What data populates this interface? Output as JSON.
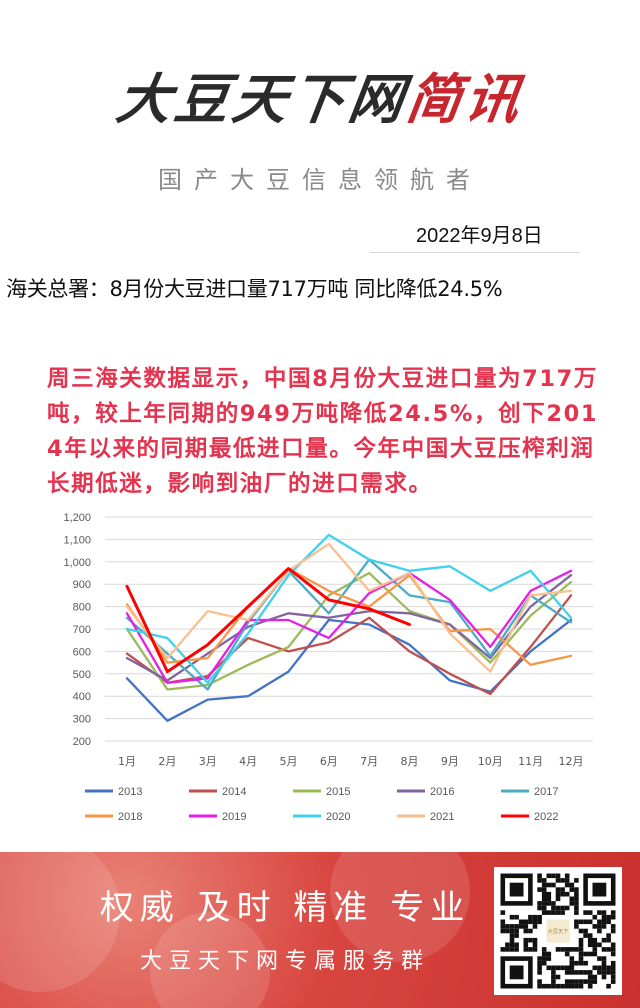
{
  "header": {
    "brand_main": "大豆天下网",
    "brand_sub": "简讯",
    "slogan": "国产大豆信息领航者",
    "date": "2022年9月8日"
  },
  "headline": "海关总署：8月份大豆进口量717万吨 同比降低24.5%",
  "body_text": "周三海关数据显示，中国8月份大豆进口量为717万吨，较上年同期的949万吨降低24.5%，创下2014年以来的同期最低进口量。今年中国大豆压榨利润长期低迷，影响到油厂的进口需求。",
  "footer": {
    "line1": "权威 及时 精准 专业",
    "line2": "大豆天下网专属服务群",
    "qr_logo_text": "大豆天下"
  },
  "chart_data": {
    "type": "line",
    "categories": [
      "1月",
      "2月",
      "3月",
      "4月",
      "5月",
      "6月",
      "7月",
      "8月",
      "9月",
      "10月",
      "11月",
      "12月"
    ],
    "y_ticks": [
      "1,200",
      "1,100",
      "1,000",
      "900",
      "800",
      "700",
      "600",
      "500",
      "400",
      "300",
      "200"
    ],
    "ylim": [
      200,
      1200
    ],
    "grid": true,
    "legend_position": "bottom",
    "series": [
      {
        "name": "2013",
        "color": "#4472c4",
        "values": [
          480,
          290,
          385,
          400,
          510,
          740,
          720,
          630,
          470,
          420,
          600,
          740
        ]
      },
      {
        "name": "2014",
        "color": "#c0504d",
        "values": [
          590,
          460,
          490,
          660,
          600,
          640,
          750,
          600,
          500,
          410,
          620,
          850
        ]
      },
      {
        "name": "2015",
        "color": "#9bbb59",
        "values": [
          700,
          430,
          450,
          540,
          620,
          850,
          950,
          780,
          720,
          550,
          760,
          910
        ]
      },
      {
        "name": "2016",
        "color": "#8064a2",
        "values": [
          570,
          470,
          590,
          710,
          770,
          750,
          780,
          770,
          720,
          570,
          800,
          940
        ]
      },
      {
        "name": "2017",
        "color": "#4bacc6",
        "values": [
          750,
          590,
          430,
          730,
          960,
          770,
          1010,
          850,
          820,
          580,
          850,
          730
        ]
      },
      {
        "name": "2018",
        "color": "#f79646",
        "values": [
          810,
          550,
          570,
          800,
          970,
          870,
          800,
          940,
          690,
          700,
          540,
          580
        ]
      },
      {
        "name": "2019",
        "color": "#e61ee6",
        "values": [
          770,
          460,
          480,
          740,
          740,
          660,
          860,
          950,
          830,
          620,
          870,
          960
        ]
      },
      {
        "name": "2020",
        "color": "#3fd0ee",
        "values": [
          700,
          660,
          460,
          680,
          940,
          1120,
          1010,
          960,
          980,
          870,
          960,
          750
        ]
      },
      {
        "name": "2021",
        "color": "#fabf8f",
        "values": [
          800,
          570,
          780,
          740,
          960,
          1080,
          870,
          950,
          680,
          510,
          850,
          870
        ]
      },
      {
        "name": "2022",
        "color": "#ff0000",
        "values": [
          890,
          510,
          630,
          800,
          970,
          830,
          790,
          720,
          null,
          null,
          null,
          null
        ]
      }
    ]
  }
}
